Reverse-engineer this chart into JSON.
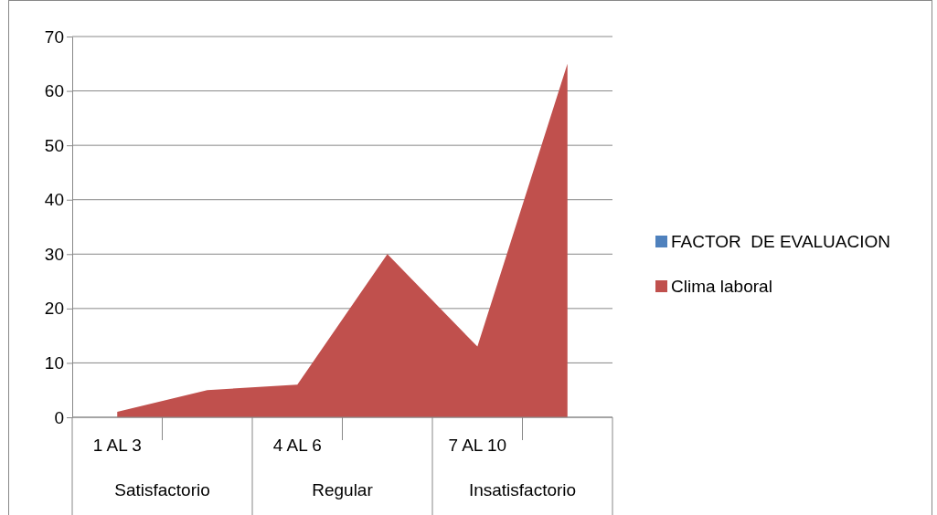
{
  "chart_data": {
    "type": "area",
    "categories": [
      "1 AL 3",
      null,
      "4 AL 6",
      null,
      "7 AL 10",
      null
    ],
    "series": [
      {
        "name": "FACTOR  DE EVALUACION",
        "color": "#4f81bd",
        "values": [
          null,
          null,
          null,
          null,
          null,
          null
        ]
      },
      {
        "name": "Clima laboral",
        "color": "#c0504d",
        "values": [
          1,
          5,
          6,
          30,
          13,
          65
        ]
      }
    ],
    "ylim": [
      0,
      70
    ],
    "yticks": [
      0,
      10,
      20,
      30,
      40,
      50,
      60,
      70
    ],
    "grid": "y",
    "legend": "right",
    "annotations": [
      "Satisfactorio",
      "Regular",
      "Insatisfactorio"
    ]
  }
}
